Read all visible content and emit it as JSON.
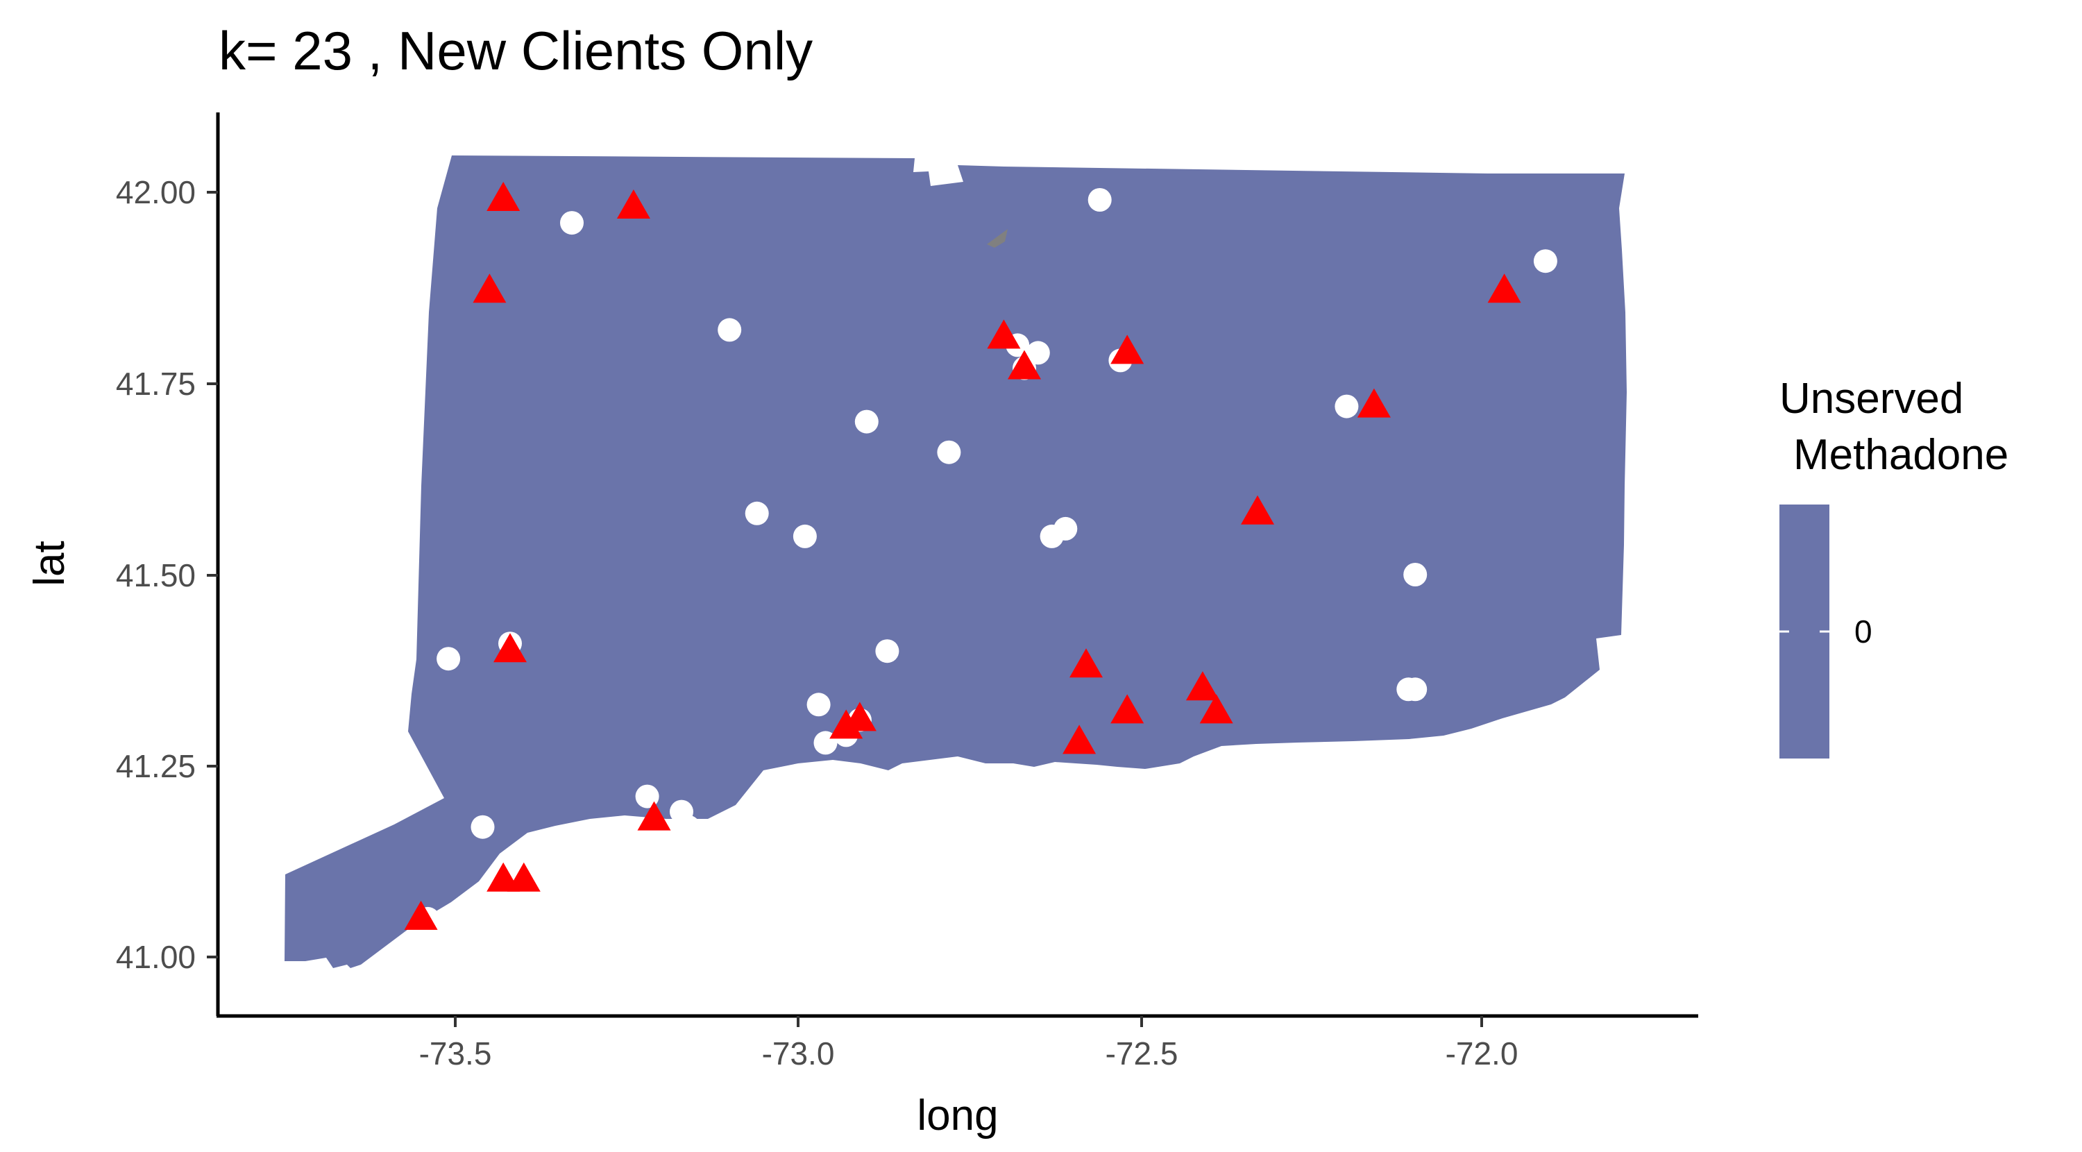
{
  "chart_data": {
    "type": "scatter",
    "title": "k= 23 , New Clients Only",
    "xlabel": "long",
    "ylabel": "lat",
    "xlim": [
      -73.85,
      -71.75
    ],
    "ylim": [
      40.93,
      42.1
    ],
    "x_ticks": [
      "-73.5",
      "-73.0",
      "-72.5",
      "-72.0"
    ],
    "x_tick_values": [
      -73.5,
      -73.0,
      -72.5,
      -72.0
    ],
    "y_ticks": [
      "41.00",
      "41.25",
      "41.50",
      "41.75",
      "42.00"
    ],
    "y_tick_values": [
      41.0,
      41.25,
      41.5,
      41.75,
      42.0
    ],
    "grid": false,
    "region_fill": "#6a74aa",
    "legend": {
      "title_line1": "Unserved",
      "title_line2": "Methadone",
      "label": "0",
      "placement": "right"
    },
    "series": [
      {
        "shape": "circle",
        "color": "#ffffff",
        "points": [
          [
            -73.33,
            41.96
          ],
          [
            -73.1,
            41.82
          ],
          [
            -72.56,
            41.99
          ],
          [
            -71.91,
            41.91
          ],
          [
            -72.68,
            41.8
          ],
          [
            -72.67,
            41.77
          ],
          [
            -72.65,
            41.79
          ],
          [
            -72.53,
            41.78
          ],
          [
            -72.9,
            41.7
          ],
          [
            -72.78,
            41.66
          ],
          [
            -72.2,
            41.72
          ],
          [
            -73.06,
            41.58
          ],
          [
            -72.99,
            41.55
          ],
          [
            -72.63,
            41.55
          ],
          [
            -72.61,
            41.56
          ],
          [
            -72.1,
            41.5
          ],
          [
            -73.42,
            41.41
          ],
          [
            -73.51,
            41.39
          ],
          [
            -72.87,
            41.4
          ],
          [
            -72.97,
            41.33
          ],
          [
            -72.96,
            41.28
          ],
          [
            -72.93,
            41.29
          ],
          [
            -72.91,
            41.31
          ],
          [
            -72.11,
            41.35
          ],
          [
            -72.1,
            41.35
          ],
          [
            -73.46,
            41.17
          ],
          [
            -73.22,
            41.21
          ],
          [
            -73.21,
            41.17
          ],
          [
            -73.17,
            41.19
          ],
          [
            -73.16,
            41.17
          ],
          [
            -73.42,
            41.1
          ],
          [
            -73.41,
            41.1
          ],
          [
            -73.54,
            41.05
          ]
        ]
      },
      {
        "shape": "triangle",
        "color": "#ff0000",
        "points": [
          [
            -73.43,
            41.99
          ],
          [
            -73.24,
            41.98
          ],
          [
            -73.45,
            41.87
          ],
          [
            -72.7,
            41.81
          ],
          [
            -72.67,
            41.77
          ],
          [
            -72.52,
            41.79
          ],
          [
            -71.97,
            41.87
          ],
          [
            -72.16,
            41.72
          ],
          [
            -72.33,
            41.58
          ],
          [
            -73.42,
            41.4
          ],
          [
            -72.58,
            41.38
          ],
          [
            -72.41,
            41.35
          ],
          [
            -72.52,
            41.32
          ],
          [
            -72.39,
            41.32
          ],
          [
            -72.93,
            41.3
          ],
          [
            -72.91,
            41.31
          ],
          [
            -72.59,
            41.28
          ],
          [
            -73.21,
            41.18
          ],
          [
            -73.43,
            41.1
          ],
          [
            -73.4,
            41.1
          ],
          [
            -73.55,
            41.05
          ]
        ]
      }
    ],
    "small_feature": {
      "x": -72.69,
      "y": 41.94,
      "color": "#808080"
    }
  }
}
